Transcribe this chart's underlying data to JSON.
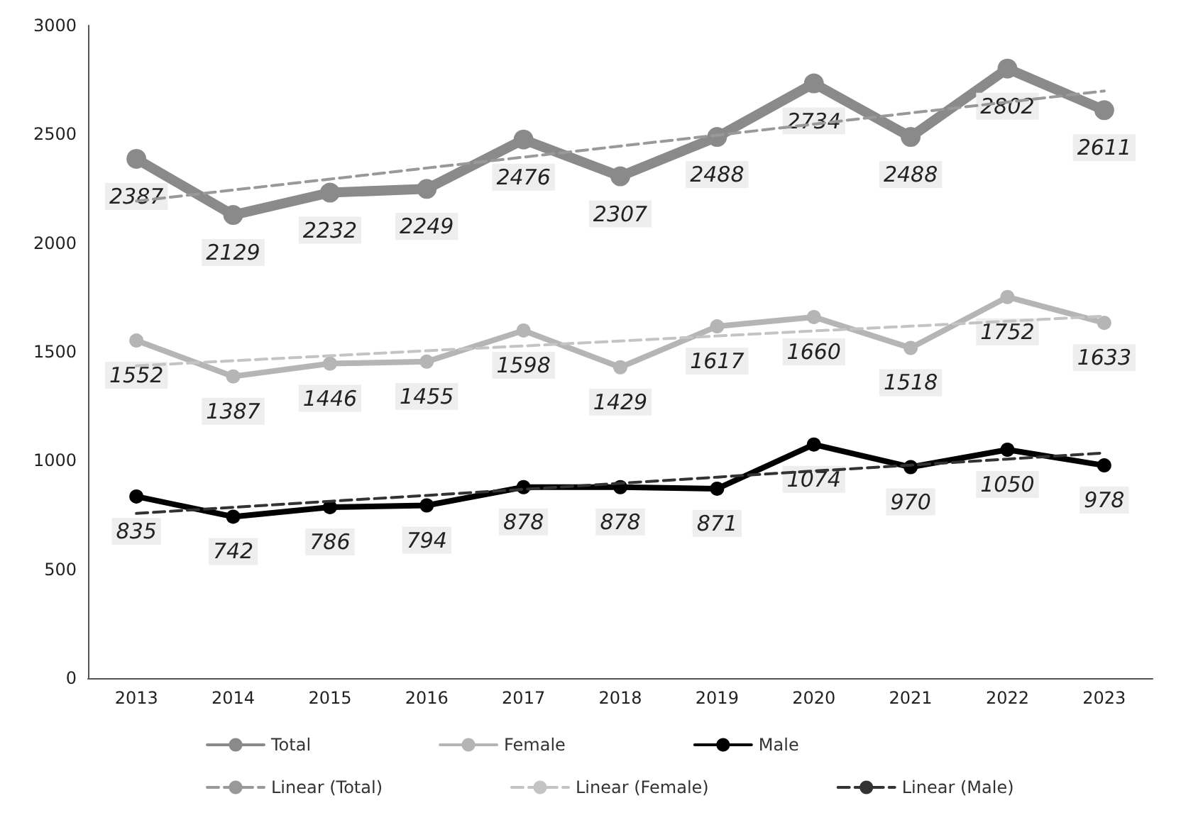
{
  "chart_data": {
    "type": "line",
    "categories": [
      "2013",
      "2014",
      "2015",
      "2016",
      "2017",
      "2018",
      "2019",
      "2020",
      "2021",
      "2022",
      "2023"
    ],
    "series": [
      {
        "name": "Total",
        "color": "#8a8a8a",
        "values": [
          2387,
          2129,
          2232,
          2249,
          2476,
          2307,
          2488,
          2734,
          2488,
          2802,
          2611
        ],
        "value_labels": [
          "2387",
          "2129",
          "2232",
          "2249",
          "2476",
          "2307",
          "2488",
          "2734",
          "2488",
          "2802",
          "2611"
        ]
      },
      {
        "name": "Female",
        "color": "#b5b5b5",
        "values": [
          1552,
          1387,
          1446,
          1455,
          1598,
          1429,
          1617,
          1660,
          1518,
          1752,
          1633
        ],
        "value_labels": [
          "1552",
          "1387",
          "1446",
          "1455",
          "1598",
          "1429",
          "1617",
          "1660",
          "1518",
          "1752",
          "1633"
        ]
      },
      {
        "name": "Male",
        "color": "#000000",
        "values": [
          835,
          742,
          786,
          794,
          878,
          878,
          871,
          1074,
          970,
          1050,
          978
        ],
        "value_labels": [
          "835",
          "742",
          "786",
          "794",
          "878",
          "878",
          "871",
          "1074",
          "970",
          "1050",
          "978"
        ]
      },
      {
        "name": "Linear (Total)",
        "color": "#999999",
        "values": [
          2193,
          2244,
          2294,
          2345,
          2395,
          2446,
          2496,
          2547,
          2598,
          2648,
          2699
        ],
        "line_style": "dashed",
        "marker": "none"
      },
      {
        "name": "Linear (Female)",
        "color": "#c4c4c4",
        "values": [
          1436,
          1459,
          1482,
          1505,
          1527,
          1550,
          1573,
          1596,
          1618,
          1641,
          1664
        ],
        "line_style": "dashed",
        "marker": "none"
      },
      {
        "name": "Linear (Male)",
        "color": "#333333",
        "values": [
          757,
          785,
          813,
          840,
          868,
          896,
          924,
          952,
          979,
          1007,
          1035
        ],
        "line_style": "dashed",
        "marker": "none"
      }
    ],
    "ylim": [
      0,
      3000
    ],
    "yticks": [
      0,
      500,
      1000,
      1500,
      2000,
      2500,
      3000
    ],
    "grid": false,
    "legend": "bottom",
    "marker": "circle",
    "line_style": "solid"
  }
}
